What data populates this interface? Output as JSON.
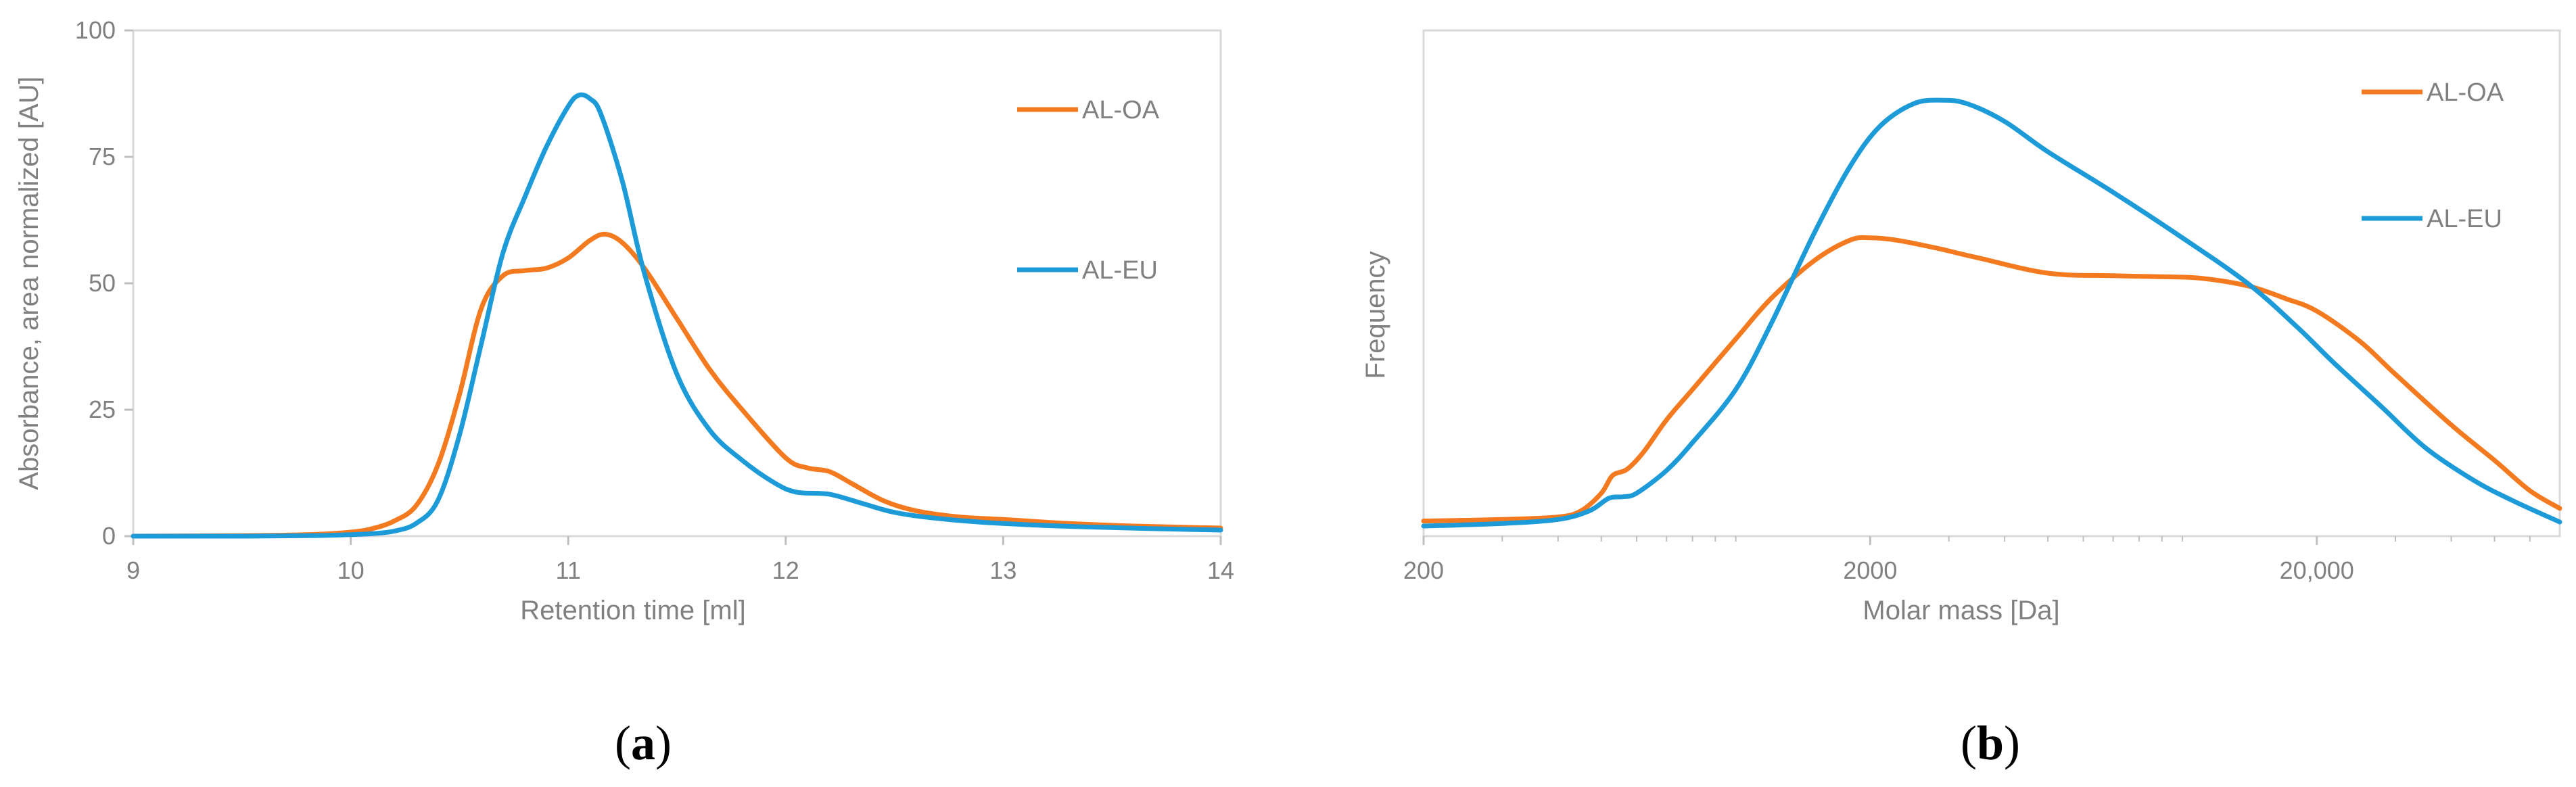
{
  "chart_data": [
    {
      "type": "line",
      "panel_label": {
        "open": "(",
        "letter": "a",
        "close": ")"
      },
      "xlabel": "Retention time [ml]",
      "ylabel": "Absorbance, area normalized [AU]",
      "xlim": [
        9,
        14
      ],
      "ylim": [
        0,
        100
      ],
      "xticks": [
        9,
        10,
        11,
        12,
        13,
        14
      ],
      "xtick_labels": [
        "9",
        "10",
        "11",
        "12",
        "13",
        "14"
      ],
      "yticks": [
        0,
        25,
        50,
        75,
        100
      ],
      "ytick_labels": [
        "0",
        "25",
        "50",
        "75",
        "100"
      ],
      "grid": false,
      "legend_position": "right",
      "series": [
        {
          "name": "AL-OA",
          "color": "#F47A20",
          "points": [
            [
              9.0,
              0.0
            ],
            [
              9.5,
              0.1
            ],
            [
              9.8,
              0.3
            ],
            [
              10.0,
              0.8
            ],
            [
              10.1,
              1.5
            ],
            [
              10.2,
              3.0
            ],
            [
              10.3,
              6.0
            ],
            [
              10.4,
              14.0
            ],
            [
              10.5,
              28.0
            ],
            [
              10.6,
              45.0
            ],
            [
              10.7,
              51.5
            ],
            [
              10.8,
              52.5
            ],
            [
              10.9,
              53.0
            ],
            [
              11.0,
              55.0
            ],
            [
              11.1,
              58.5
            ],
            [
              11.17,
              59.7
            ],
            [
              11.25,
              58.0
            ],
            [
              11.35,
              53.0
            ],
            [
              11.5,
              43.0
            ],
            [
              11.65,
              33.0
            ],
            [
              11.8,
              25.0
            ],
            [
              12.0,
              15.5
            ],
            [
              12.1,
              13.5
            ],
            [
              12.2,
              12.8
            ],
            [
              12.3,
              10.5
            ],
            [
              12.45,
              7.0
            ],
            [
              12.6,
              5.0
            ],
            [
              12.8,
              3.8
            ],
            [
              13.0,
              3.3
            ],
            [
              13.3,
              2.5
            ],
            [
              13.6,
              2.0
            ],
            [
              14.0,
              1.6
            ]
          ]
        },
        {
          "name": "AL-EU",
          "color": "#1C9BD8",
          "points": [
            [
              9.0,
              0.0
            ],
            [
              9.5,
              0.0
            ],
            [
              9.8,
              0.1
            ],
            [
              10.0,
              0.3
            ],
            [
              10.1,
              0.5
            ],
            [
              10.2,
              1.0
            ],
            [
              10.3,
              2.5
            ],
            [
              10.4,
              7.0
            ],
            [
              10.5,
              20.0
            ],
            [
              10.6,
              38.0
            ],
            [
              10.7,
              56.0
            ],
            [
              10.8,
              67.0
            ],
            [
              10.9,
              77.0
            ],
            [
              11.0,
              85.0
            ],
            [
              11.05,
              87.2
            ],
            [
              11.1,
              86.5
            ],
            [
              11.15,
              83.5
            ],
            [
              11.25,
              70.0
            ],
            [
              11.35,
              52.0
            ],
            [
              11.5,
              32.0
            ],
            [
              11.65,
              21.0
            ],
            [
              11.8,
              15.0
            ],
            [
              11.95,
              10.5
            ],
            [
              12.05,
              8.7
            ],
            [
              12.2,
              8.3
            ],
            [
              12.35,
              6.5
            ],
            [
              12.5,
              4.7
            ],
            [
              12.7,
              3.5
            ],
            [
              13.0,
              2.5
            ],
            [
              13.4,
              1.8
            ],
            [
              14.0,
              1.2
            ]
          ]
        }
      ]
    },
    {
      "type": "line",
      "panel_label": {
        "open": "(",
        "letter": "b",
        "close": ")"
      },
      "xlabel": "Molar mass [Da]",
      "ylabel": "Frequency",
      "xscale": "log",
      "xlim": [
        200,
        70000
      ],
      "ylim": [
        0,
        1
      ],
      "xticks": [
        200,
        2000,
        20000
      ],
      "xtick_labels": [
        "200",
        "2000",
        "20,000"
      ],
      "yticks": [],
      "ytick_labels": [],
      "grid": false,
      "legend_position": "top-right",
      "series": [
        {
          "name": "AL-OA",
          "color": "#F47A20",
          "points": [
            [
              200,
              0.03
            ],
            [
              300,
              0.033
            ],
            [
              400,
              0.038
            ],
            [
              450,
              0.05
            ],
            [
              500,
              0.085
            ],
            [
              530,
              0.12
            ],
            [
              570,
              0.132
            ],
            [
              620,
              0.165
            ],
            [
              700,
              0.23
            ],
            [
              800,
              0.29
            ],
            [
              1000,
              0.39
            ],
            [
              1200,
              0.47
            ],
            [
              1500,
              0.545
            ],
            [
              1800,
              0.585
            ],
            [
              2000,
              0.59
            ],
            [
              2300,
              0.585
            ],
            [
              2800,
              0.57
            ],
            [
              3500,
              0.55
            ],
            [
              5000,
              0.52
            ],
            [
              7000,
              0.515
            ],
            [
              9000,
              0.513
            ],
            [
              11000,
              0.51
            ],
            [
              14000,
              0.495
            ],
            [
              17000,
              0.47
            ],
            [
              20000,
              0.445
            ],
            [
              25000,
              0.385
            ],
            [
              30000,
              0.32
            ],
            [
              40000,
              0.22
            ],
            [
              50000,
              0.15
            ],
            [
              60000,
              0.09
            ],
            [
              70000,
              0.055
            ]
          ]
        },
        {
          "name": "AL-EU",
          "color": "#1C9BD8",
          "points": [
            [
              200,
              0.02
            ],
            [
              300,
              0.025
            ],
            [
              400,
              0.033
            ],
            [
              470,
              0.05
            ],
            [
              520,
              0.075
            ],
            [
              560,
              0.078
            ],
            [
              600,
              0.085
            ],
            [
              700,
              0.13
            ],
            [
              800,
              0.185
            ],
            [
              1000,
              0.29
            ],
            [
              1200,
              0.42
            ],
            [
              1500,
              0.6
            ],
            [
              1800,
              0.73
            ],
            [
              2100,
              0.81
            ],
            [
              2500,
              0.855
            ],
            [
              2900,
              0.862
            ],
            [
              3300,
              0.855
            ],
            [
              4000,
              0.82
            ],
            [
              5000,
              0.76
            ],
            [
              7000,
              0.68
            ],
            [
              10000,
              0.59
            ],
            [
              14000,
              0.5
            ],
            [
              18000,
              0.415
            ],
            [
              22000,
              0.34
            ],
            [
              28000,
              0.255
            ],
            [
              35000,
              0.175
            ],
            [
              45000,
              0.11
            ],
            [
              55000,
              0.07
            ],
            [
              70000,
              0.028
            ]
          ]
        }
      ]
    }
  ]
}
